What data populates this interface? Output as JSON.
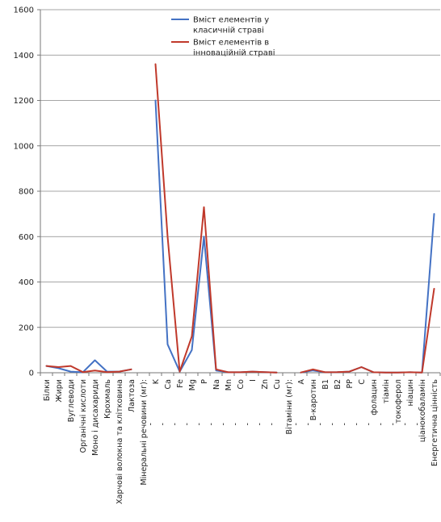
{
  "chart_data": {
    "type": "line",
    "ylim": [
      0,
      1600
    ],
    "yticks": [
      0,
      200,
      400,
      600,
      800,
      1000,
      1200,
      1400,
      1600
    ],
    "grid": true,
    "legend_position": "top-right",
    "categories": [
      "Білки",
      "Жири",
      "Вуглеводи",
      "Органічні кислоти",
      "Моно і дисахариди",
      "Крохмаль",
      "Харчові волокна та клітковина",
      "Лактоза",
      "Мінеральні речовини (мг):",
      "K",
      "Ca",
      "Fe",
      "Mg",
      "P",
      "Na",
      "Mn",
      "Co",
      "I",
      "Zn",
      "Cu",
      "Вітаміни (мг):",
      "A",
      "B-каротин",
      "B1",
      "B2",
      "PP",
      "C",
      "фолацин",
      "тіамін",
      "токоферол",
      "ніацин",
      "ціанокобаламін",
      "Енергетична цінність"
    ],
    "bullets": [
      "",
      "",
      "",
      "",
      "",
      "",
      "",
      "",
      "",
      "-",
      "-",
      "-",
      "-",
      "-",
      "-",
      "-",
      "-",
      "-",
      "-",
      "-",
      "",
      "-",
      "-",
      "-",
      "-",
      "-",
      "-",
      "-",
      "-",
      "-",
      "-",
      "-",
      ""
    ],
    "series": [
      {
        "name": "Вміст елементів у класичній страві",
        "color": "#4472C4",
        "values": [
          30,
          20,
          5,
          2,
          55,
          5,
          5,
          15,
          null,
          1200,
          125,
          5,
          100,
          600,
          10,
          2,
          2,
          5,
          3,
          1,
          null,
          1,
          10,
          2,
          3,
          5,
          25,
          2,
          1,
          1,
          2,
          1,
          700
        ]
      },
      {
        "name": "Вміст елементів в інноваційній страві",
        "color": "#C0392B",
        "values": [
          30,
          25,
          30,
          3,
          10,
          3,
          5,
          15,
          null,
          1360,
          600,
          5,
          160,
          730,
          15,
          2,
          2,
          5,
          3,
          1,
          null,
          1,
          15,
          2,
          3,
          5,
          25,
          2,
          1,
          1,
          2,
          1,
          370
        ]
      }
    ]
  }
}
